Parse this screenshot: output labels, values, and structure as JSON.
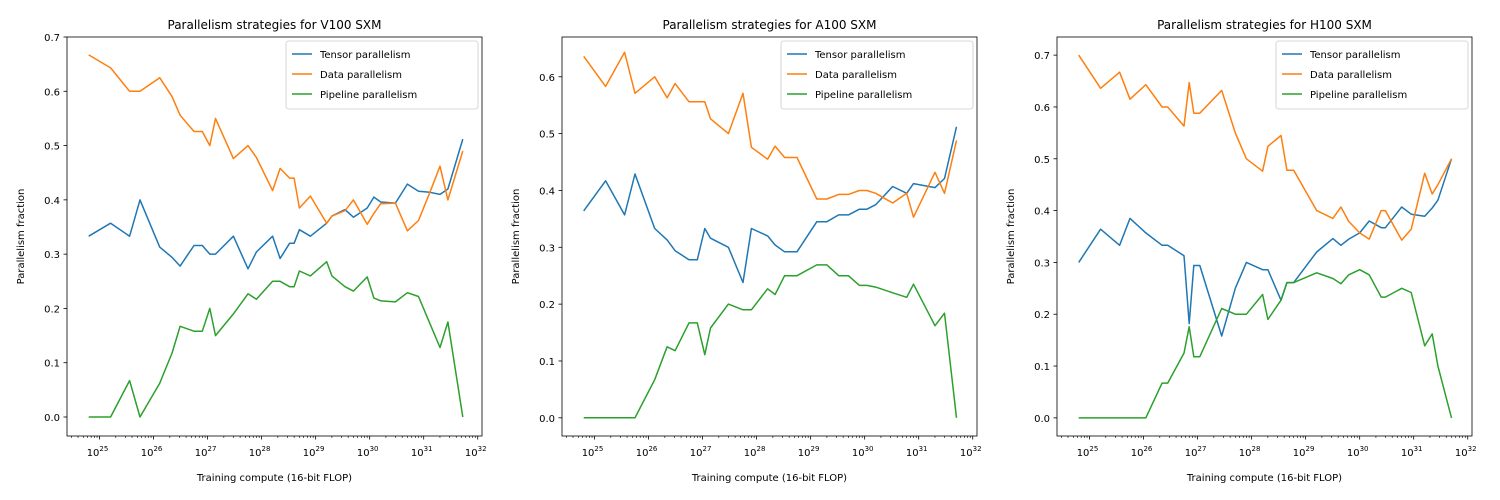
{
  "chart_data": [
    {
      "type": "line",
      "title": "Parallelism strategies for V100 SXM",
      "xlabel": "Training compute (16-bit FLOP)",
      "ylabel": "Parallelism fraction",
      "x_scale": "log",
      "xlim": [
        2.5e+24,
        1.2e+32
      ],
      "ylim": [
        -0.035,
        0.7
      ],
      "yticks": [
        0.0,
        0.1,
        0.2,
        0.3,
        0.4,
        0.5,
        0.6,
        0.7
      ],
      "ytick_labels": [
        "0.0",
        "0.1",
        "0.2",
        "0.3",
        "0.4",
        "0.5",
        "0.6",
        "0.7"
      ],
      "xtick_exponents": [
        25,
        26,
        27,
        28,
        29,
        30,
        31,
        32
      ],
      "legend_position": "top-right",
      "x": [
        6.3e+24,
        1.6e+25,
        3.6e+25,
        5.6e+25,
        1.3e+26,
        2.2e+26,
        3.1e+26,
        5.6e+26,
        8e+26,
        1.1e+27,
        1.4e+27,
        3e+27,
        5.6e+27,
        8e+27,
        1.6e+28,
        2.2e+28,
        3.3e+28,
        4e+28,
        5e+28,
        8e+28,
        1.6e+29,
        2e+29,
        3.5e+29,
        5e+29,
        9e+29,
        1.2e+30,
        1.6e+30,
        3e+30,
        5e+30,
        8e+30,
        1.3e+31,
        2e+31,
        2.8e+31,
        5.3e+31
      ],
      "series": [
        {
          "name": "Tensor parallelism",
          "color": "#1f77b4",
          "values": [
            0.333,
            0.357,
            0.333,
            0.4,
            0.313,
            0.294,
            0.278,
            0.316,
            0.316,
            0.3,
            0.3,
            0.333,
            0.273,
            0.304,
            0.333,
            0.292,
            0.32,
            0.32,
            0.345,
            0.333,
            0.357,
            0.37,
            0.382,
            0.368,
            0.385,
            0.405,
            0.396,
            0.394,
            0.429,
            0.416,
            0.414,
            0.41,
            0.42,
            0.512
          ]
        },
        {
          "name": "Data parallelism",
          "color": "#ff7f0e",
          "values": [
            0.667,
            0.643,
            0.6,
            0.6,
            0.625,
            0.59,
            0.556,
            0.526,
            0.526,
            0.5,
            0.55,
            0.476,
            0.5,
            0.478,
            0.417,
            0.458,
            0.44,
            0.44,
            0.385,
            0.407,
            0.357,
            0.37,
            0.38,
            0.4,
            0.355,
            0.375,
            0.393,
            0.394,
            0.343,
            0.362,
            0.414,
            0.462,
            0.4,
            0.49
          ]
        },
        {
          "name": "Pipeline parallelism",
          "color": "#2ca02c",
          "values": [
            0.0,
            0.0,
            0.067,
            0.0,
            0.062,
            0.118,
            0.167,
            0.158,
            0.158,
            0.2,
            0.15,
            0.19,
            0.227,
            0.217,
            0.25,
            0.25,
            0.24,
            0.24,
            0.269,
            0.26,
            0.286,
            0.26,
            0.24,
            0.232,
            0.258,
            0.219,
            0.214,
            0.212,
            0.229,
            0.222,
            0.172,
            0.128,
            0.175,
            0.0
          ]
        }
      ]
    },
    {
      "type": "line",
      "title": "Parallelism strategies for A100 SXM",
      "xlabel": "Training compute (16-bit FLOP)",
      "ylabel": "Parallelism fraction",
      "x_scale": "log",
      "xlim": [
        2.5e+24,
        1.2e+32
      ],
      "ylim": [
        -0.032,
        0.67
      ],
      "yticks": [
        0.0,
        0.1,
        0.2,
        0.3,
        0.4,
        0.5,
        0.6
      ],
      "ytick_labels": [
        "0.0",
        "0.1",
        "0.2",
        "0.3",
        "0.4",
        "0.5",
        "0.6"
      ],
      "xtick_exponents": [
        25,
        26,
        27,
        28,
        29,
        30,
        31,
        32
      ],
      "legend_position": "top-right",
      "x": [
        6.3e+24,
        1.6e+25,
        3.6e+25,
        5.6e+25,
        1.3e+26,
        2.2e+26,
        3.1e+26,
        5.6e+26,
        8e+26,
        1.1e+27,
        1.4e+27,
        3e+27,
        5.6e+27,
        8e+27,
        1.6e+28,
        2.2e+28,
        3.3e+28,
        5.6e+28,
        1.3e+29,
        2e+29,
        3.3e+29,
        5e+29,
        8e+29,
        1.1e+30,
        1.6e+30,
        3.3e+30,
        6e+30,
        8e+30,
        2e+31,
        3e+31,
        5e+31
      ],
      "series": [
        {
          "name": "Tensor parallelism",
          "color": "#1f77b4",
          "values": [
            0.364,
            0.417,
            0.357,
            0.429,
            0.333,
            0.313,
            0.294,
            0.278,
            0.278,
            0.333,
            0.316,
            0.3,
            0.238,
            0.333,
            0.32,
            0.304,
            0.292,
            0.292,
            0.345,
            0.345,
            0.357,
            0.357,
            0.367,
            0.367,
            0.375,
            0.407,
            0.395,
            0.412,
            0.405,
            0.421,
            0.512
          ]
        },
        {
          "name": "Data parallelism",
          "color": "#ff7f0e",
          "values": [
            0.636,
            0.583,
            0.643,
            0.571,
            0.6,
            0.563,
            0.588,
            0.556,
            0.556,
            0.556,
            0.526,
            0.5,
            0.571,
            0.476,
            0.455,
            0.478,
            0.458,
            0.458,
            0.385,
            0.385,
            0.393,
            0.393,
            0.4,
            0.4,
            0.395,
            0.378,
            0.395,
            0.353,
            0.432,
            0.395,
            0.488
          ]
        },
        {
          "name": "Pipeline parallelism",
          "color": "#2ca02c",
          "values": [
            0.0,
            0.0,
            0.0,
            0.0,
            0.067,
            0.125,
            0.118,
            0.167,
            0.167,
            0.111,
            0.158,
            0.2,
            0.19,
            0.19,
            0.227,
            0.217,
            0.25,
            0.25,
            0.269,
            0.269,
            0.25,
            0.25,
            0.233,
            0.233,
            0.23,
            0.22,
            0.212,
            0.235,
            0.162,
            0.184,
            0.0
          ]
        }
      ]
    },
    {
      "type": "line",
      "title": "Parallelism strategies for H100 SXM",
      "xlabel": "Training compute (16-bit FLOP)",
      "ylabel": "Parallelism fraction",
      "x_scale": "log",
      "xlim": [
        2.5e+24,
        1.2e+32
      ],
      "ylim": [
        -0.035,
        0.735
      ],
      "yticks": [
        0.0,
        0.1,
        0.2,
        0.3,
        0.4,
        0.5,
        0.6,
        0.7
      ],
      "ytick_labels": [
        "0.0",
        "0.1",
        "0.2",
        "0.3",
        "0.4",
        "0.5",
        "0.6",
        "0.7"
      ],
      "xtick_exponents": [
        25,
        26,
        27,
        28,
        29,
        30,
        31,
        32
      ],
      "legend_position": "top-right",
      "x": [
        6.3e+24,
        1.6e+25,
        3.6e+25,
        5.6e+25,
        1.1e+26,
        2.2e+26,
        2.8e+26,
        5.6e+26,
        7e+26,
        8.5e+26,
        1.1e+27,
        2.8e+27,
        5e+27,
        8e+27,
        1.6e+28,
        2e+28,
        3.5e+28,
        4.5e+28,
        6e+28,
        1.6e+29,
        3.2e+29,
        4.5e+29,
        6.3e+29,
        1e+30,
        1.5e+30,
        2.5e+30,
        3e+30,
        6e+30,
        9e+30,
        1.6e+31,
        2.2e+31,
        2.8e+31,
        5e+31
      ],
      "series": [
        {
          "name": "Tensor parallelism",
          "color": "#1f77b4",
          "values": [
            0.3,
            0.364,
            0.333,
            0.385,
            0.357,
            0.333,
            0.333,
            0.313,
            0.182,
            0.294,
            0.294,
            0.158,
            0.25,
            0.3,
            0.286,
            0.286,
            0.227,
            0.261,
            0.261,
            0.32,
            0.346,
            0.333,
            0.345,
            0.357,
            0.38,
            0.367,
            0.367,
            0.407,
            0.393,
            0.389,
            0.405,
            0.42,
            0.5
          ]
        },
        {
          "name": "Data parallelism",
          "color": "#ff7f0e",
          "values": [
            0.7,
            0.636,
            0.667,
            0.615,
            0.643,
            0.6,
            0.6,
            0.563,
            0.647,
            0.588,
            0.588,
            0.632,
            0.55,
            0.5,
            0.476,
            0.524,
            0.545,
            0.478,
            0.478,
            0.4,
            0.385,
            0.407,
            0.379,
            0.357,
            0.345,
            0.4,
            0.4,
            0.343,
            0.364,
            0.472,
            0.432,
            0.45,
            0.5
          ]
        },
        {
          "name": "Pipeline parallelism",
          "color": "#2ca02c",
          "values": [
            0.0,
            0.0,
            0.0,
            0.0,
            0.0,
            0.067,
            0.067,
            0.125,
            0.176,
            0.118,
            0.118,
            0.211,
            0.2,
            0.2,
            0.238,
            0.19,
            0.227,
            0.261,
            0.261,
            0.28,
            0.269,
            0.259,
            0.276,
            0.286,
            0.276,
            0.233,
            0.233,
            0.25,
            0.242,
            0.139,
            0.162,
            0.1,
            0.0
          ]
        }
      ]
    }
  ]
}
